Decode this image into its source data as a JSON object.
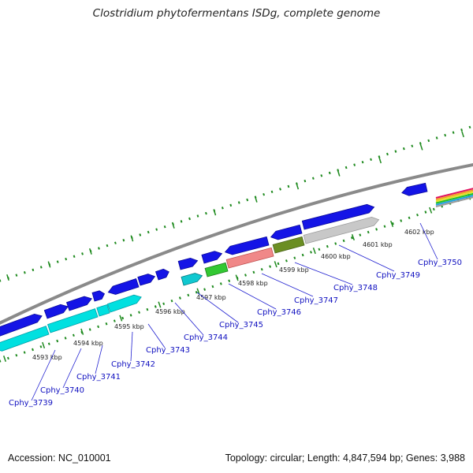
{
  "title": "Clostridium phytofermentans ISDg, complete genome",
  "accession": "Accession: NC_010001",
  "topology": "Topology: circular; Length: 4,847,594 bp; Genes: 3,988",
  "colors": {
    "backbone": "#8a8a8a",
    "tick": "#1e8a1e",
    "gene_forward": "#1414e6",
    "gene_reverse": "#00e0e0",
    "label": "#1010c0",
    "leader": "#2020d0",
    "kbp_text": "#222222"
  },
  "kbp_labels": [
    "4593 kbp",
    "4594 kbp",
    "4595 kbp",
    "4596 kbp",
    "4597 kbp",
    "4598 kbp",
    "4599 kbp",
    "4600 kbp",
    "4601 kbp",
    "4602 kbp"
  ],
  "gene_labels": [
    "Cphy_3739",
    "Cphy_3740",
    "Cphy_3741",
    "Cphy_3742",
    "Cphy_3743",
    "Cphy_3744",
    "Cphy_3745",
    "Cphy_3746",
    "Cphy_3747",
    "Cphy_3748",
    "Cphy_3749",
    "Cphy_3750"
  ]
}
